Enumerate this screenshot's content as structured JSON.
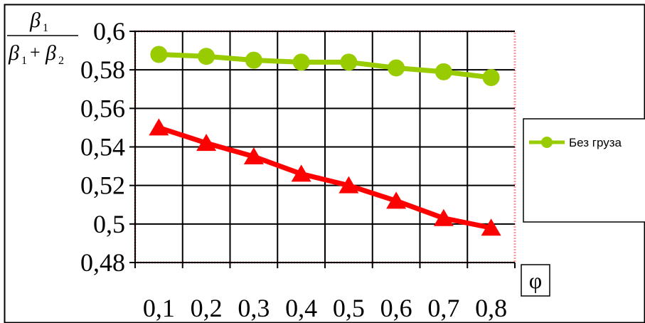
{
  "chart_data": {
    "type": "line",
    "categories": [
      "0,1",
      "0,2",
      "0,3",
      "0,4",
      "0,5",
      "0,6",
      "0,7",
      "0,8"
    ],
    "series": [
      {
        "name": "Без груза",
        "color": "#99cc00",
        "marker": "circle",
        "values": [
          0.588,
          0.587,
          0.585,
          0.584,
          0.584,
          0.581,
          0.579,
          0.576
        ]
      },
      {
        "name": "",
        "color": "#ff0000",
        "marker": "triangle",
        "values": [
          0.55,
          0.542,
          0.535,
          0.526,
          0.52,
          0.512,
          0.503,
          0.498
        ]
      }
    ],
    "y_ticks": [
      "0,48",
      "0,5",
      "0,52",
      "0,54",
      "0,56",
      "0,58",
      "0,6"
    ],
    "y_tick_values": [
      0.48,
      0.5,
      0.52,
      0.54,
      0.56,
      0.58,
      0.6
    ],
    "ylim": [
      0.48,
      0.6
    ],
    "ylabel": {
      "numerator": "β",
      "numerator_sub": "1",
      "denominator_a": "β",
      "denominator_a_sub": "1",
      "plus": "+",
      "denominator_b": "β",
      "denominator_b_sub": "2"
    },
    "xlabel": "φ",
    "grid": true,
    "legend_position": "right"
  }
}
